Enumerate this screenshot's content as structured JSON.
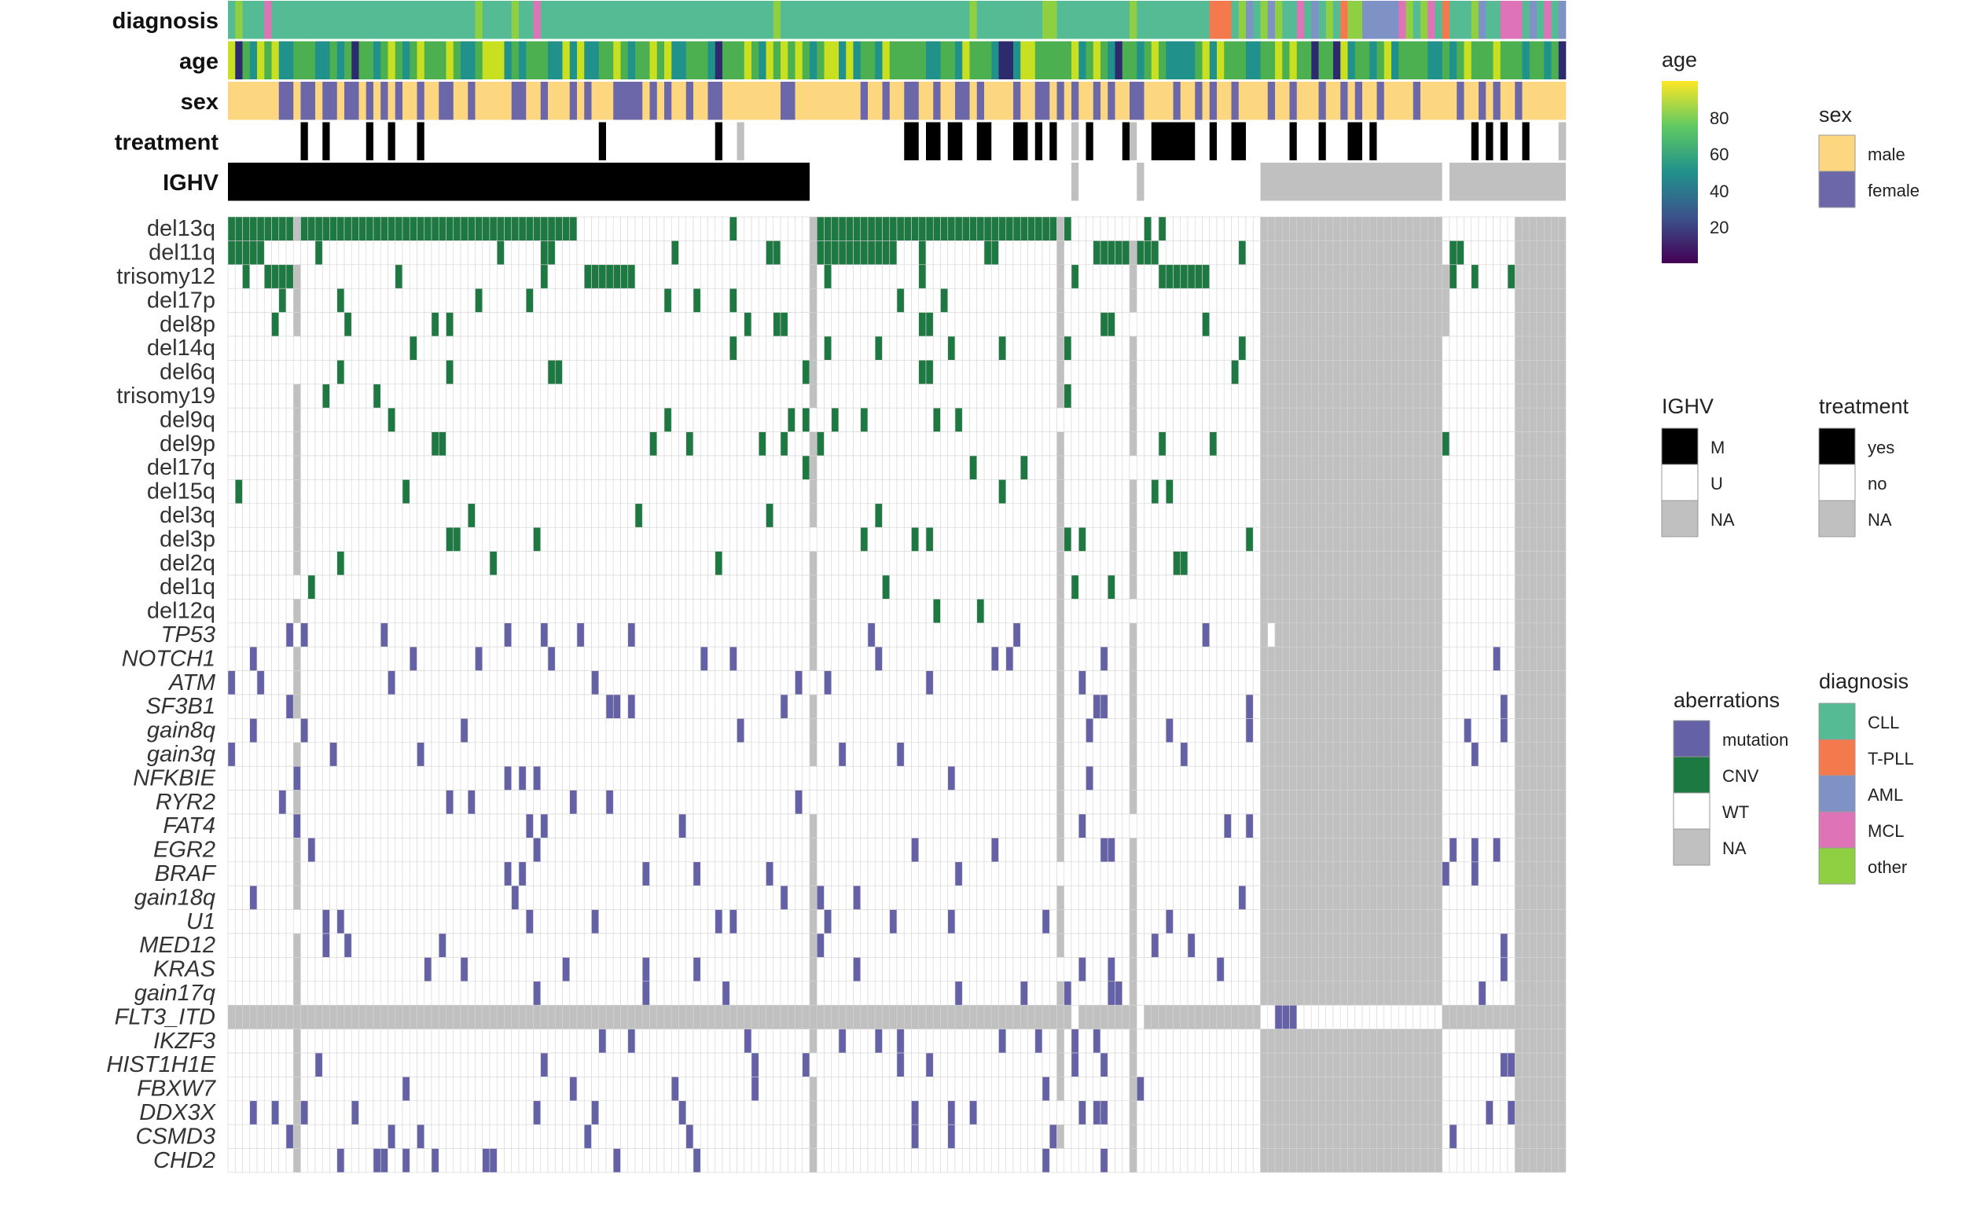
{
  "annotation_labels": [
    "diagnosis",
    "age",
    "sex",
    "treatment",
    "IGHV"
  ],
  "genomic_labels": [
    "del13q",
    "del11q",
    "trisomy12",
    "del17p",
    "del8p",
    "del14q",
    "del6q",
    "trisomy19",
    "del9q",
    "del9p",
    "del17q",
    "del15q",
    "del3q",
    "del3p",
    "del2q",
    "del1q",
    "del12q"
  ],
  "gene_labels": [
    "TP53",
    "NOTCH1",
    "ATM",
    "SF3B1",
    "gain8q",
    "gain3q",
    "NFKBIE",
    "RYR2",
    "FAT4",
    "EGR2",
    "BRAF",
    "gain18q",
    "U1",
    "MED12",
    "KRAS",
    "gain17q",
    "FLT3_ITD",
    "IKZF3",
    "HIST1H1E",
    "FBXW7",
    "DDX3X",
    "CSMD3",
    "CHD2"
  ],
  "legends": {
    "age": {
      "title": "age",
      "ticks": [
        "80",
        "60",
        "40",
        "20"
      ],
      "gradient": [
        "#fde725",
        "#5ec962",
        "#21918c",
        "#3b528b",
        "#440154"
      ]
    },
    "sex": {
      "title": "sex",
      "items": [
        {
          "label": "male",
          "color": "#fdd680"
        },
        {
          "label": "female",
          "color": "#6c67a8"
        }
      ]
    },
    "ighv": {
      "title": "IGHV",
      "items": [
        {
          "label": "M",
          "color": "#000000"
        },
        {
          "label": "U",
          "color": "#ffffff"
        },
        {
          "label": "NA",
          "color": "#c0c0c0"
        }
      ]
    },
    "treatment": {
      "title": "treatment",
      "items": [
        {
          "label": "yes",
          "color": "#000000"
        },
        {
          "label": "no",
          "color": "#ffffff"
        },
        {
          "label": "NA",
          "color": "#c0c0c0"
        }
      ]
    },
    "aberrations": {
      "title": "aberrations",
      "items": [
        {
          "label": "mutation",
          "color": "#6561a6"
        },
        {
          "label": "CNV",
          "color": "#1e7841"
        },
        {
          "label": "WT",
          "color": "#ffffff"
        },
        {
          "label": "NA",
          "color": "#c0c0c0"
        }
      ]
    },
    "diagnosis": {
      "title": "diagnosis",
      "items": [
        {
          "label": "CLL",
          "color": "#55bb94"
        },
        {
          "label": "T-PLL",
          "color": "#f47a4e"
        },
        {
          "label": "AML",
          "color": "#7f92c6"
        },
        {
          "label": "MCL",
          "color": "#de73b8"
        },
        {
          "label": "other",
          "color": "#8fd043"
        }
      ]
    }
  },
  "chart_data": {
    "type": "heatmap",
    "xlabel": "",
    "ylabel": "",
    "n_samples": 184,
    "rows": [
      "diagnosis",
      "age",
      "sex",
      "treatment",
      "IGHV",
      "del13q",
      "del11q",
      "trisomy12",
      "del17p",
      "del8p",
      "del14q",
      "del6q",
      "trisomy19",
      "del9q",
      "del9p",
      "del17q",
      "del15q",
      "del3q",
      "del3p",
      "del2q",
      "del1q",
      "del12q",
      "TP53",
      "NOTCH1",
      "ATM",
      "SF3B1",
      "gain8q",
      "gain3q",
      "NFKBIE",
      "RYR2",
      "FAT4",
      "EGR2",
      "BRAF",
      "gain18q",
      "U1",
      "MED12",
      "KRAS",
      "gain17q",
      "FLT3_ITD",
      "IKZF3",
      "HIST1H1E",
      "FBXW7",
      "DDX3X",
      "CSMD3",
      "CHD2"
    ],
    "colors": {
      "mutation": "#6561a6",
      "CNV": "#1e7841",
      "WT": "#ffffff",
      "NA": "#c0c0c0",
      "grid": "#d4d4d4"
    },
    "ighv_runs": [
      [
        0,
        80,
        "M"
      ],
      [
        80,
        116,
        "U"
      ],
      [
        116,
        117,
        "NA"
      ],
      [
        117,
        125,
        "U"
      ],
      [
        125,
        126,
        "NA"
      ],
      [
        126,
        142,
        "U"
      ],
      [
        142,
        167,
        "NA"
      ],
      [
        167,
        168,
        "U"
      ],
      [
        168,
        184,
        "NA"
      ]
    ],
    "treatment_yes": [
      10,
      13,
      19,
      22,
      26,
      51,
      67,
      93,
      94,
      96,
      97,
      99,
      100,
      103,
      104,
      108,
      109,
      111,
      113,
      118,
      123,
      127,
      128,
      129,
      130,
      131,
      132,
      135,
      138,
      139,
      146,
      150,
      154,
      155,
      157,
      171,
      173,
      175,
      178
    ],
    "treatment_na": [
      70,
      116,
      124,
      183
    ],
    "sex_female": [
      7,
      8,
      10,
      11,
      13,
      14,
      16,
      17,
      19,
      21,
      23,
      26,
      29,
      30,
      33,
      39,
      40,
      43,
      47,
      49,
      53,
      54,
      55,
      56,
      58,
      60,
      63,
      66,
      67,
      76,
      77,
      87,
      90,
      93,
      94,
      97,
      100,
      101,
      103,
      108,
      111,
      112,
      114,
      116,
      119,
      121,
      124,
      125,
      130,
      133,
      135,
      138,
      143,
      146,
      150,
      153,
      155,
      158,
      163,
      169,
      172,
      174,
      177
    ],
    "row_na_blocks": {
      "del13q": [
        [
          142,
          167
        ],
        [
          177,
          184
        ]
      ],
      "del11q": [
        [
          142,
          167
        ],
        [
          177,
          184
        ]
      ],
      "trisomy12": [
        [
          142,
          168
        ],
        [
          177,
          184
        ]
      ],
      "del17p": [
        [
          142,
          168
        ],
        [
          177,
          184
        ]
      ],
      "del8p": [
        [
          142,
          168
        ],
        [
          177,
          184
        ]
      ],
      "TP53": [
        [
          142,
          143
        ],
        [
          144,
          167
        ],
        [
          177,
          184
        ]
      ],
      "FLT3_ITD": [
        [
          0,
          116
        ],
        [
          117,
          125
        ],
        [
          126,
          142
        ],
        [
          167,
          184
        ]
      ]
    },
    "na_columns": [
      9,
      80,
      114,
      124
    ],
    "mutation_density": 0.06,
    "cnv_density": 0.06
  }
}
